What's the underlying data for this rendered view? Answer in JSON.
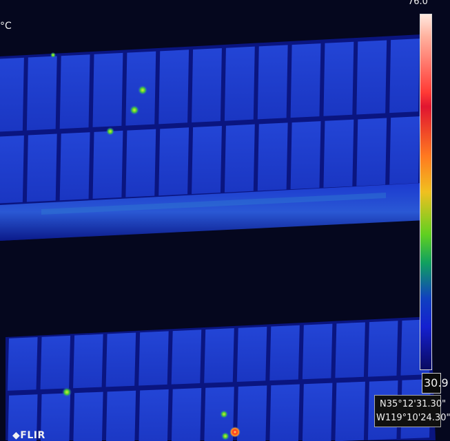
{
  "thermal": {
    "unit_label": "°C",
    "max_temp": "76.0",
    "min_temp": "30.9",
    "brand": "◆FLIR",
    "colors": {
      "background": "#05071e",
      "panel_cell": "#1d3fd0",
      "panel_frame": "#0a1470",
      "hotspot_green": "#3fd21e",
      "hotspot_yellow": "#f0e020",
      "hotspot_red": "#ff2a20"
    }
  },
  "gps": {
    "latitude": "N35°12'31.30\"",
    "longitude": "W119°10'24.30\""
  }
}
